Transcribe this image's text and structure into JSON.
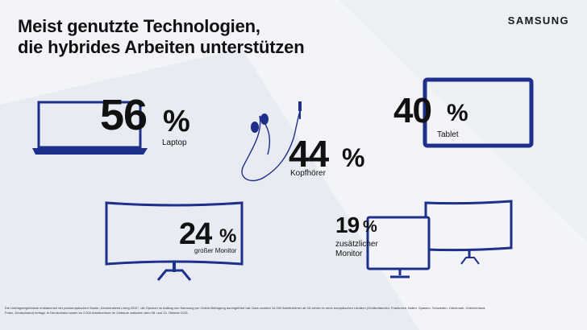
{
  "title": {
    "line1": "Meist genutzte Technologien,",
    "line2": "die hybrides Arbeiten unterstützen"
  },
  "brand": "SAMSUNG",
  "items": [
    {
      "device": "laptop-icon",
      "value": "56",
      "unit": "%",
      "label": "Laptop"
    },
    {
      "device": "earphones-icon",
      "value": "44",
      "unit": "%",
      "label": "Kopfhörer"
    },
    {
      "device": "tablet-icon",
      "value": "40",
      "unit": "%",
      "label": "Tablet"
    },
    {
      "device": "curved-monitor-icon",
      "value": "24",
      "unit": "%",
      "label": "großer Monitor"
    },
    {
      "device": "dual-monitor-icon",
      "value": "19",
      "unit": "%",
      "label_line1": "zusätzlicher",
      "label_line2": "Monitor"
    }
  ],
  "colors": {
    "device": "#1e2f8c",
    "background": "#f2f4f8",
    "text": "#111111"
  },
  "footnote": "Die Umfrageergebnisse entstammen der paneuropäischen Studie „Decentralized Living 2021\", die Opinium im Auftrag von Samsung per Online-Befragung durchgeführt hat. Dazu wurden 14.000 Arbeitnehmer ab 18 Jahren in neun europäischen Ländern (Großbritannien, Frankreich, Italien, Spanien, Schweden, Dänemark, Griechenland, Polen, Deutschland) befragt. In Deutschland waren es 2.000 Arbeitnehmer im Zeitraum zwischen dem 08. und 13. Oktober 2021."
}
